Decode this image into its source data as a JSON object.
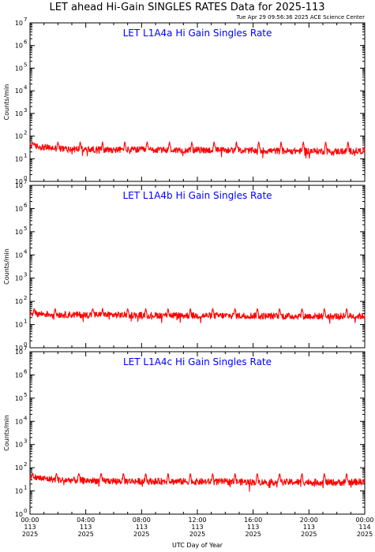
{
  "page": {
    "title": "LET ahead Hi-Gain SINGLES RATES Data for 2025-113",
    "timestamp": "Tue Apr 29 09:56:36 2025 ACE Science Center"
  },
  "colors": {
    "series": "#ff0000",
    "panel_label": "#0000ff",
    "axes": "#000000"
  },
  "chart_data": [
    {
      "type": "line",
      "title": "LET L1A4a Hi Gain Singles Rate",
      "ylabel": "Counts/min",
      "yscale": "log",
      "ylim": [
        1,
        10000000
      ],
      "xlim": [
        0,
        24
      ],
      "y_ticks": [
        1,
        10,
        100,
        1000,
        10000,
        100000,
        1000000,
        10000000
      ],
      "y_tick_labels": [
        [
          "10",
          "0"
        ],
        [
          "10",
          "1"
        ],
        [
          "10",
          "2"
        ],
        [
          "10",
          "3"
        ],
        [
          "10",
          "4"
        ],
        [
          "10",
          "5"
        ],
        [
          "10",
          "6"
        ],
        [
          "10",
          "7"
        ]
      ],
      "series": [
        {
          "baseline": [
            [
              0,
              38
            ],
            [
              1,
              32
            ],
            [
              2,
              28
            ],
            [
              4,
              26
            ],
            [
              6,
              25
            ],
            [
              8,
              25
            ],
            [
              10,
              24
            ],
            [
              12,
              24
            ],
            [
              14,
              24
            ],
            [
              16,
              23
            ],
            [
              18,
              22
            ],
            [
              20,
              22
            ],
            [
              22,
              21
            ],
            [
              24,
              22
            ]
          ],
          "spikes_hours": [
            0.2,
            2.0,
            3.6,
            5.2,
            6.8,
            8.4,
            10.0,
            11.6,
            13.2,
            14.8,
            16.4,
            18.0,
            19.6,
            21.2,
            22.8
          ],
          "spike_peak": 55
        }
      ]
    },
    {
      "type": "line",
      "title": "LET L1A4b Hi Gain Singles Rate",
      "ylabel": "Counts/min",
      "yscale": "log",
      "ylim": [
        1,
        10000000
      ],
      "xlim": [
        0,
        24
      ],
      "y_ticks": [
        1,
        10,
        100,
        1000,
        10000,
        100000,
        1000000,
        10000000
      ],
      "y_tick_labels": [
        [
          "10",
          "0"
        ],
        [
          "10",
          "1"
        ],
        [
          "10",
          "2"
        ],
        [
          "10",
          "3"
        ],
        [
          "10",
          "4"
        ],
        [
          "10",
          "5"
        ],
        [
          "10",
          "6"
        ],
        [
          "10",
          "7"
        ]
      ],
      "series": [
        {
          "baseline": [
            [
              0,
              30
            ],
            [
              2,
              27
            ],
            [
              4,
              26
            ],
            [
              6,
              26
            ],
            [
              8,
              25
            ],
            [
              10,
              25
            ],
            [
              12,
              24
            ],
            [
              14,
              24
            ],
            [
              16,
              24
            ],
            [
              18,
              23
            ],
            [
              20,
              23
            ],
            [
              22,
              23
            ],
            [
              24,
              23
            ]
          ],
          "spikes_hours": [
            0.3,
            1.8,
            4.5,
            5.2,
            7.0,
            8.3,
            9.9,
            11.5,
            13.1,
            14.7,
            16.3,
            17.9,
            19.5,
            21.1,
            22.7
          ],
          "spike_peak": 50
        }
      ]
    },
    {
      "type": "line",
      "title": "LET L1A4c Hi Gain Singles Rate",
      "ylabel": "Counts/min",
      "yscale": "log",
      "ylim": [
        1,
        10000000
      ],
      "xlim": [
        0,
        24
      ],
      "y_ticks": [
        1,
        10,
        100,
        1000,
        10000,
        100000,
        1000000,
        10000000
      ],
      "y_tick_labels": [
        [
          "10",
          "0"
        ],
        [
          "10",
          "1"
        ],
        [
          "10",
          "2"
        ],
        [
          "10",
          "3"
        ],
        [
          "10",
          "4"
        ],
        [
          "10",
          "5"
        ],
        [
          "10",
          "6"
        ],
        [
          "10",
          "7"
        ]
      ],
      "xlabel": "UTC Day of Year",
      "x_ticks": [
        0,
        4,
        8,
        12,
        16,
        20,
        24
      ],
      "x_tick_labels": [
        [
          "00:00",
          "113",
          "2025"
        ],
        [
          "04:00",
          "113",
          "2025"
        ],
        [
          "08:00",
          "113",
          "2025"
        ],
        [
          "12:00",
          "113",
          "2025"
        ],
        [
          "16:00",
          "113",
          "2025"
        ],
        [
          "20:00",
          "113",
          "2025"
        ],
        [
          "00:00",
          "114",
          "2025"
        ]
      ],
      "series": [
        {
          "baseline": [
            [
              0,
              40
            ],
            [
              1,
              34
            ],
            [
              2,
              30
            ],
            [
              4,
              28
            ],
            [
              6,
              27
            ],
            [
              8,
              26
            ],
            [
              10,
              26
            ],
            [
              12,
              25
            ],
            [
              14,
              25
            ],
            [
              16,
              24
            ],
            [
              18,
              24
            ],
            [
              20,
              24
            ],
            [
              22,
              23
            ],
            [
              24,
              25
            ]
          ],
          "spikes_hours": [
            0.2,
            1.9,
            3.5,
            5.1,
            6.7,
            8.3,
            9.9,
            11.5,
            13.1,
            14.7,
            16.3,
            17.9,
            19.5,
            21.1,
            22.7
          ],
          "spike_peak": 58
        }
      ]
    }
  ]
}
